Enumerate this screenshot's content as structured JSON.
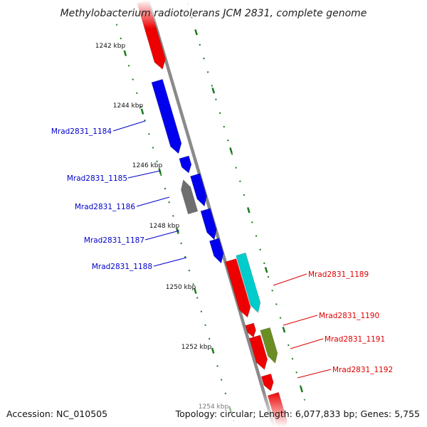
{
  "title": "Methylobacterium radiotolerans JCM 2831, complete genome",
  "accession": "Accession: NC_010505",
  "summary": "Topology: circular; Length: 6,077,833 bp; Genes: 5,755",
  "colors": {
    "backbone": "#8a8a8a",
    "tick": "#1a7a1a",
    "gene_blue": "#0000ee",
    "gene_red": "#ee0000",
    "gene_cyan": "#00cccc",
    "gene_gray": "#6e6e6e",
    "gene_olive": "#6b8e23",
    "label_blue": "#0000cc",
    "label_red": "#dd0000"
  },
  "scale_labels": [
    "1242 kbp",
    "1244 kbp",
    "1246 kbp",
    "1248 kbp",
    "1250 kbp",
    "1252 kbp",
    "1254 kbp"
  ],
  "genes": [
    {
      "label": "",
      "color": "red"
    },
    {
      "label": "Mrad2831_1184",
      "color": "blue"
    },
    {
      "label": "Mrad2831_1185",
      "color": "blue"
    },
    {
      "label": "Mrad2831_1186",
      "color": "gray"
    },
    {
      "label": "Mrad2831_1186",
      "color": "blue"
    },
    {
      "label": "Mrad2831_1187",
      "color": "blue"
    },
    {
      "label": "Mrad2831_1188",
      "color": "blue"
    },
    {
      "label": "Mrad2831_1189",
      "color": "red"
    },
    {
      "label": "Mrad2831_1189",
      "color": "cyan"
    },
    {
      "label": "Mrad2831_1190",
      "color": "red"
    },
    {
      "label": "Mrad2831_1191",
      "color": "red"
    },
    {
      "label": "Mrad2831_1191",
      "color": "olive"
    },
    {
      "label": "Mrad2831_1192",
      "color": "red"
    },
    {
      "label": "",
      "color": "red"
    }
  ],
  "gene_labels": [
    {
      "text": "Mrad2831_1184",
      "color": "blue"
    },
    {
      "text": "Mrad2831_1185",
      "color": "blue"
    },
    {
      "text": "Mrad2831_1186",
      "color": "blue"
    },
    {
      "text": "Mrad2831_1187",
      "color": "blue"
    },
    {
      "text": "Mrad2831_1188",
      "color": "blue"
    },
    {
      "text": "Mrad2831_1189",
      "color": "red"
    },
    {
      "text": "Mrad2831_1190",
      "color": "red"
    },
    {
      "text": "Mrad2831_1191",
      "color": "red"
    },
    {
      "text": "Mrad2831_1192",
      "color": "red"
    }
  ]
}
